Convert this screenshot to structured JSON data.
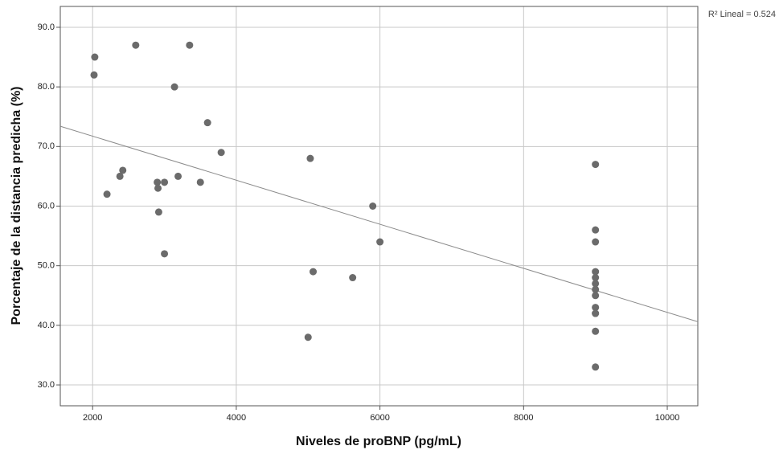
{
  "chart_data": {
    "type": "scatter",
    "x_label": "Niveles de proBNP (pg/mL)",
    "y_label": "Porcentaje de la distancia predicha (%)",
    "annotation": "R² Lineal = 0.524",
    "x": [
      2030,
      2020,
      2600,
      3350,
      3140,
      3600,
      3790,
      2420,
      2380,
      2200,
      2900,
      2910,
      3000,
      3190,
      3500,
      2920,
      3000,
      5030,
      5900,
      6000,
      5070,
      5620,
      5000,
      9000,
      9000,
      9000,
      9000,
      9000,
      9000,
      9000,
      9000,
      9000,
      9000,
      9000,
      9000,
      9000
    ],
    "values": [
      85,
      82,
      87,
      87,
      80,
      74,
      69,
      66,
      65,
      62,
      64,
      63,
      64,
      65,
      64,
      59,
      52,
      68,
      60,
      54,
      49,
      48,
      38,
      67,
      56,
      54,
      49,
      48,
      47,
      46,
      45,
      43,
      42,
      42,
      39,
      33
    ],
    "color": "#6b6b6b",
    "trend_line": {
      "x": [
        1550,
        10425
      ],
      "y": [
        73.4,
        40.6
      ],
      "color": "#8c8c8c"
    },
    "xlim": [
      1550,
      10425
    ],
    "xticks": [
      2000,
      4000,
      6000,
      8000,
      10000
    ],
    "ylim": [
      26.5,
      93.5
    ],
    "yticks": [
      {
        "value": 30,
        "label": "30.0"
      },
      {
        "value": 40,
        "label": "40.0"
      },
      {
        "value": 50,
        "label": "50.0"
      },
      {
        "value": 60,
        "label": "60.0"
      },
      {
        "value": 70,
        "label": "70.0"
      },
      {
        "value": 80,
        "label": "80.0"
      },
      {
        "value": 90,
        "label": "90.0"
      }
    ],
    "grid": true
  }
}
